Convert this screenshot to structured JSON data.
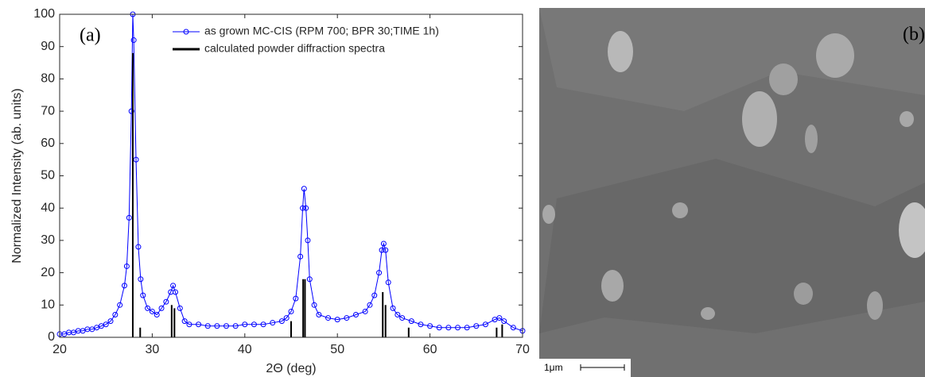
{
  "chart_data": {
    "type": "line",
    "xlabel": "2Θ (deg)",
    "ylabel": "Normalized Intensity (ab. units)",
    "annotation": "(a)",
    "xlim": [
      20,
      70
    ],
    "xticks": [
      20,
      30,
      40,
      50,
      60,
      70
    ],
    "ylim": [
      0,
      100
    ],
    "yticks": [
      0,
      10,
      20,
      30,
      40,
      50,
      60,
      70,
      80,
      90,
      100
    ],
    "legend": "upper right",
    "series": [
      {
        "name": "as grown MC-CIS (RPM 700; BPR 30;TIME 1h)",
        "color": "#0000ff",
        "style": "line-circles",
        "x": [
          20,
          20.5,
          21,
          21.5,
          22,
          22.5,
          23,
          23.5,
          24,
          24.5,
          25,
          25.5,
          26,
          26.5,
          27,
          27.25,
          27.5,
          27.75,
          27.9,
          28,
          28.25,
          28.5,
          28.75,
          29,
          29.5,
          30,
          30.5,
          31,
          31.5,
          32,
          32.25,
          32.5,
          33,
          33.5,
          34,
          35,
          36,
          37,
          38,
          39,
          40,
          41,
          42,
          43,
          44,
          44.5,
          45,
          45.5,
          46,
          46.25,
          46.4,
          46.6,
          46.8,
          47,
          47.5,
          48,
          49,
          50,
          51,
          52,
          53,
          53.5,
          54,
          54.5,
          54.8,
          55,
          55.2,
          55.5,
          56,
          56.5,
          57,
          58,
          59,
          60,
          61,
          62,
          63,
          64,
          65,
          66,
          67,
          67.5,
          68,
          69,
          70
        ],
        "values": [
          1,
          1,
          1.5,
          1.5,
          2,
          2,
          2.5,
          2.5,
          3,
          3.5,
          4,
          5,
          7,
          10,
          16,
          22,
          37,
          70,
          100,
          92,
          55,
          28,
          18,
          13,
          9,
          8,
          7,
          9,
          11,
          14,
          16,
          14,
          9,
          5,
          4,
          4,
          3.5,
          3.5,
          3.5,
          3.5,
          4,
          4,
          4,
          4.5,
          5,
          6,
          8,
          12,
          25,
          40,
          46,
          40,
          30,
          18,
          10,
          7,
          6,
          5.5,
          6,
          7,
          8,
          10,
          13,
          20,
          27,
          29,
          27,
          17,
          9,
          7,
          6,
          5,
          4,
          3.5,
          3,
          3,
          3,
          3,
          3.5,
          4,
          5.5,
          6,
          5,
          3,
          2
        ]
      },
      {
        "name": "calculated powder diffraction spectra",
        "color": "#000000",
        "style": "stem",
        "x": [
          27.9,
          28.7,
          32.1,
          32.4,
          45.0,
          46.3,
          46.5,
          54.9,
          55.2,
          57.7,
          67.2,
          67.8
        ],
        "values": [
          88,
          3,
          10,
          9,
          5,
          18,
          18,
          14,
          10,
          3,
          3,
          4
        ]
      }
    ]
  },
  "image_panel": {
    "label": "(b)",
    "scale_bar": "1μm"
  }
}
